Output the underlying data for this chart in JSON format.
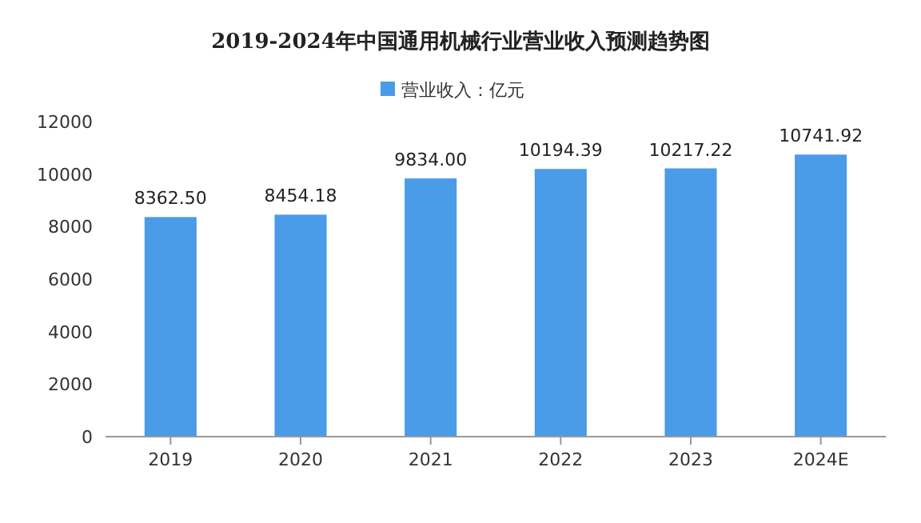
{
  "chart_data": {
    "type": "bar",
    "title": "2019-2024年中国通用机械行业营业收入预测趋势图",
    "categories": [
      "2019",
      "2020",
      "2021",
      "2022",
      "2023",
      "2024E"
    ],
    "series": [
      {
        "name": "营业收入：亿元",
        "color": "#4a9be8",
        "values": [
          8362.5,
          8454.18,
          9834,
          10194.39,
          10217.22,
          10741.92
        ],
        "value_labels": [
          "8362.50",
          "8454.18",
          "9834.00",
          "10194.39",
          "10217.22",
          "10741.92"
        ]
      }
    ],
    "ylim": [
      0,
      12000
    ],
    "yticks": [
      0,
      2000,
      4000,
      6000,
      8000,
      10000,
      12000
    ],
    "legend": "top",
    "grid": false
  }
}
